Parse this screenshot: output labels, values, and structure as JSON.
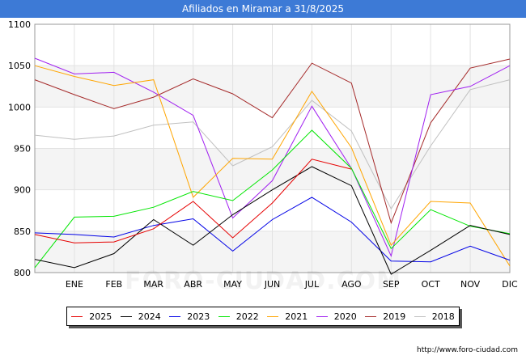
{
  "title": "Afiliados en Miramar a 31/8/2025",
  "source_text": "http://www.foro-ciudad.com",
  "watermark": "FORO-CIUDAD.COM",
  "chart_data": {
    "type": "line",
    "title": "Afiliados en Miramar a 31/8/2025",
    "x_labels": [
      "",
      "ENE",
      "FEB",
      "MAR",
      "ABR",
      "MAY",
      "JUN",
      "JUL",
      "AGO",
      "SEP",
      "OCT",
      "NOV",
      "DIC"
    ],
    "ylim": [
      800,
      1100
    ],
    "yticks": [
      800,
      850,
      900,
      950,
      1000,
      1050,
      1100
    ],
    "grid": true,
    "series": [
      {
        "name": "2025",
        "color": "#e60000",
        "values": [
          846,
          836,
          837,
          853,
          886,
          842,
          884,
          937,
          925,
          null,
          null,
          null,
          null
        ]
      },
      {
        "name": "2024",
        "color": "#000000",
        "values": [
          816,
          806,
          823,
          864,
          833,
          870,
          900,
          928,
          905,
          798,
          827,
          857,
          846
        ]
      },
      {
        "name": "2023",
        "color": "#0000e6",
        "values": [
          848,
          846,
          843,
          857,
          865,
          826,
          864,
          891,
          861,
          814,
          813,
          832,
          815
        ]
      },
      {
        "name": "2022",
        "color": "#00e600",
        "values": [
          806,
          867,
          868,
          879,
          898,
          887,
          924,
          972,
          926,
          829,
          876,
          856,
          847
        ]
      },
      {
        "name": "2021",
        "color": "#ffa500",
        "values": [
          1050,
          1037,
          1026,
          1033,
          891,
          938,
          937,
          1019,
          951,
          833,
          886,
          884,
          808
        ]
      },
      {
        "name": "2020",
        "color": "#a020f0",
        "values": [
          1059,
          1040,
          1042,
          1018,
          990,
          866,
          911,
          1001,
          926,
          820,
          1015,
          1025,
          1050
        ]
      },
      {
        "name": "2019",
        "color": "#a52a2a",
        "values": [
          1033,
          1015,
          998,
          1012,
          1034,
          1016,
          987,
          1053,
          1029,
          860,
          981,
          1047,
          1058
        ]
      },
      {
        "name": "2018",
        "color": "#c0c0c0",
        "values": [
          966,
          961,
          965,
          978,
          982,
          929,
          952,
          1008,
          971,
          877,
          953,
          1021,
          1033
        ]
      }
    ]
  }
}
